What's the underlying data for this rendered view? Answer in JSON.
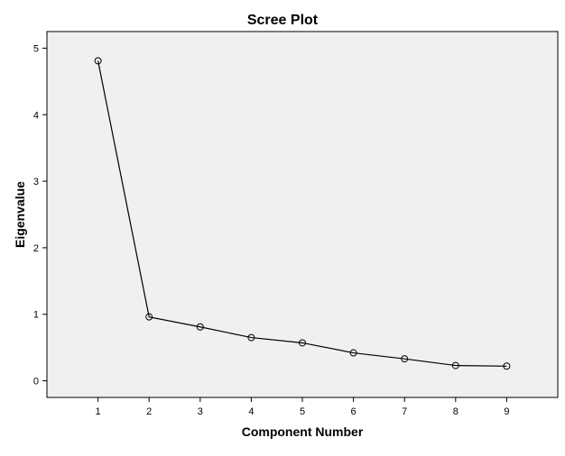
{
  "chart_data": {
    "type": "line",
    "title": "Scree Plot",
    "xlabel": "Component Number",
    "ylabel": "Eigenvalue",
    "x": [
      1,
      2,
      3,
      4,
      5,
      6,
      7,
      8,
      9
    ],
    "values": [
      4.81,
      0.96,
      0.81,
      0.65,
      0.57,
      0.42,
      0.33,
      0.23,
      0.22
    ],
    "x_ticks": [
      "1",
      "2",
      "3",
      "4",
      "5",
      "6",
      "7",
      "8",
      "9"
    ],
    "y_ticks": [
      "0",
      "1",
      "2",
      "3",
      "4",
      "5"
    ],
    "xlim": [
      0,
      10
    ],
    "ylim": [
      -0.25,
      5.25
    ],
    "grid": false,
    "legend": "none",
    "marker": "open-circle"
  },
  "colors": {
    "plot_background": "#f0f0f0",
    "line": "#000000",
    "frame": "#000000"
  }
}
